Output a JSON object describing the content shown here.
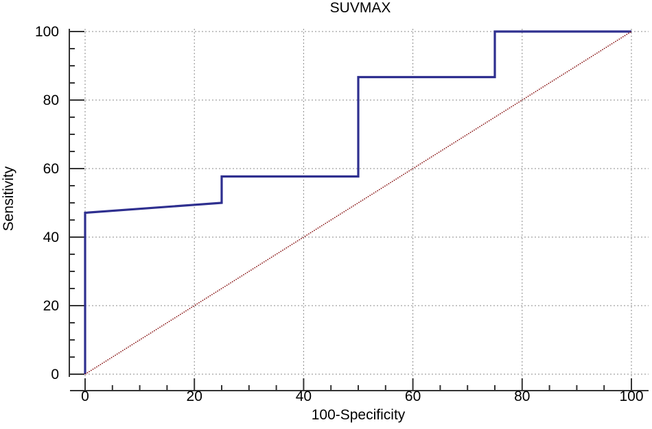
{
  "chart_data": {
    "type": "line",
    "title": "SUVMAX",
    "xlabel": "100-Specificity",
    "ylabel": "Sensitivity",
    "xlim": [
      0,
      100
    ],
    "ylim": [
      0,
      100
    ],
    "xticks": [
      0,
      20,
      40,
      60,
      80,
      100
    ],
    "yticks": [
      0,
      20,
      40,
      60,
      80,
      100
    ],
    "grid": true,
    "series": [
      {
        "color": "#2e2f8f",
        "style": "solid",
        "x": [
          0,
          0,
          25,
          25,
          50,
          50,
          75,
          75,
          100
        ],
        "y": [
          0,
          47.1,
          50.0,
          57.7,
          57.7,
          86.7,
          86.7,
          100,
          100
        ]
      },
      {
        "color": "#8b1a1a",
        "style": "dotted",
        "x": [
          0,
          100
        ],
        "y": [
          0,
          100
        ]
      }
    ]
  }
}
